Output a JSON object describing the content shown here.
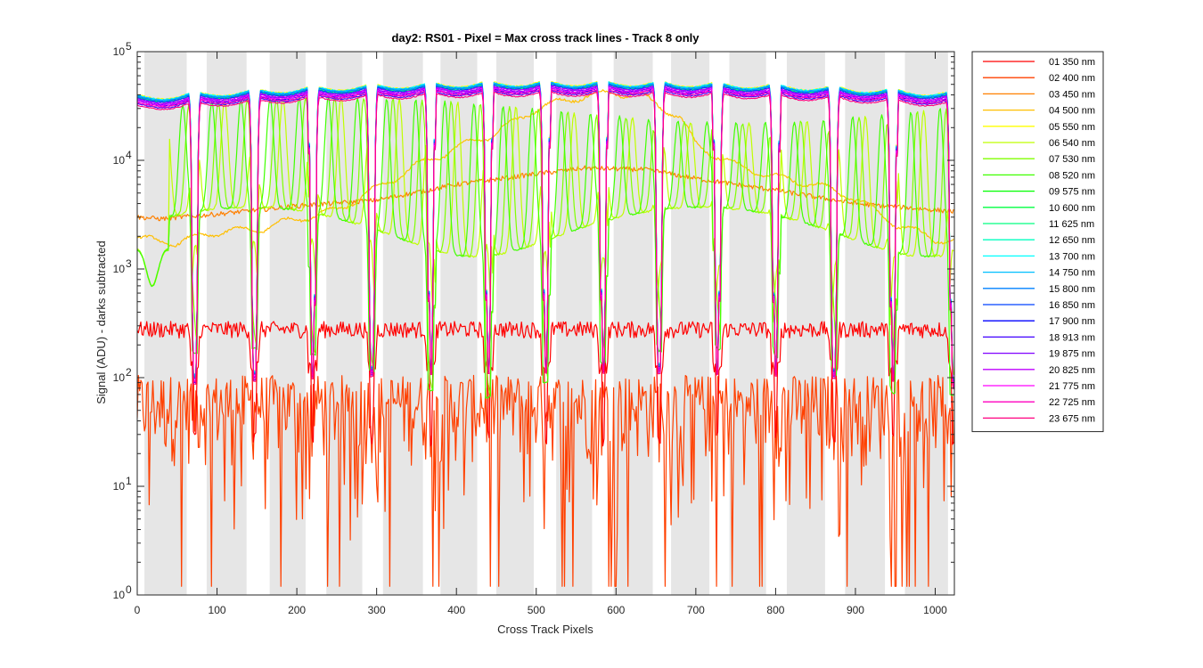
{
  "chart_data": {
    "type": "line",
    "title": "day2: RS01 - Pixel = Max cross track lines - Track 8 only",
    "xlabel": "Cross Track Pixels",
    "ylabel": "Signal (ADU) - darks subtracted",
    "xlim": [
      0,
      1024
    ],
    "ylim": [
      1,
      100000
    ],
    "yscale": "log",
    "grid": false,
    "legend_position": "outside-right",
    "xticks": [
      0,
      100,
      200,
      300,
      400,
      500,
      600,
      700,
      800,
      900,
      1000
    ],
    "xtick_labels": [
      "0",
      "100",
      "200",
      "300",
      "400",
      "500",
      "600",
      "700",
      "800",
      "900",
      "1000"
    ],
    "yticks": [
      1,
      10,
      100,
      1000,
      10000,
      100000
    ],
    "ytick_labels": [
      {
        "base": "10",
        "exp": "0"
      },
      {
        "base": "10",
        "exp": "1"
      },
      {
        "base": "10",
        "exp": "2"
      },
      {
        "base": "10",
        "exp": "3"
      },
      {
        "base": "10",
        "exp": "4"
      },
      {
        "base": "10",
        "exp": "5"
      }
    ],
    "shaded_bands": [
      [
        9,
        62
      ],
      [
        87,
        137
      ],
      [
        166,
        211
      ],
      [
        237,
        282
      ],
      [
        308,
        358
      ],
      [
        380,
        426
      ],
      [
        450,
        497
      ],
      [
        525,
        570
      ],
      [
        597,
        646
      ],
      [
        669,
        717
      ],
      [
        742,
        788
      ],
      [
        814,
        862
      ],
      [
        887,
        937
      ],
      [
        962,
        1016
      ]
    ],
    "dips": [
      72,
      147,
      220,
      294,
      368,
      440,
      512,
      584,
      654,
      727,
      800,
      873,
      947,
      1022
    ],
    "series": [
      {
        "name": "01 350 nm",
        "color": "#ff0000",
        "kind": "low",
        "level": 280
      },
      {
        "name": "02 400 nm",
        "color": "#ff4000",
        "kind": "noise",
        "level": 35
      },
      {
        "name": "03 450 nm",
        "color": "#ff8000",
        "kind": "orange",
        "x": [
          0,
          30,
          100,
          200,
          300,
          400,
          500,
          560,
          640,
          700,
          800,
          900,
          1000,
          1020
        ],
        "values": [
          3000,
          2900,
          3200,
          3800,
          4300,
          6000,
          7500,
          8500,
          8200,
          6800,
          5300,
          4000,
          3500,
          3400
        ]
      },
      {
        "name": "04 500 nm",
        "color": "#ffbf00",
        "kind": "gold",
        "x": [
          0,
          50,
          100,
          150,
          200,
          250,
          300,
          350,
          400,
          450,
          500,
          550,
          600,
          630,
          680,
          700,
          750,
          800,
          850,
          900,
          950,
          1000,
          1020
        ],
        "values": [
          1900,
          1750,
          2200,
          2300,
          2900,
          3500,
          5500,
          9000,
          13000,
          18000,
          30000,
          38000,
          42000,
          40000,
          25000,
          14000,
          9000,
          7000,
          6000,
          4500,
          2600,
          1900,
          1800
        ]
      },
      {
        "name": "05 550 nm",
        "color": "#ffff00",
        "kind": "full",
        "amp": 1.06
      },
      {
        "name": "06 540 nm",
        "color": "#bfff00",
        "kind": "green",
        "phase": 0.0
      },
      {
        "name": "07 530 nm",
        "color": "#80ff00",
        "kind": "green",
        "phase": 8.0
      },
      {
        "name": "08 520 nm",
        "color": "#40ff00",
        "kind": "green",
        "phase": 16.0
      },
      {
        "name": "09 575 nm",
        "color": "#00ff00",
        "kind": "full",
        "amp": 1.0
      },
      {
        "name": "10 600 nm",
        "color": "#00ff40",
        "kind": "full",
        "amp": 1.02
      },
      {
        "name": "11 625 nm",
        "color": "#00ff80",
        "kind": "full",
        "amp": 1.01
      },
      {
        "name": "12 650 nm",
        "color": "#00ffbf",
        "kind": "full",
        "amp": 1.03
      },
      {
        "name": "13 700 nm",
        "color": "#00ffff",
        "kind": "full",
        "amp": 1.05
      },
      {
        "name": "14 750 nm",
        "color": "#00bfff",
        "kind": "full",
        "amp": 1.04
      },
      {
        "name": "15 800 nm",
        "color": "#0080ff",
        "kind": "full",
        "amp": 1.02
      },
      {
        "name": "16 850 nm",
        "color": "#0040ff",
        "kind": "full",
        "amp": 0.99
      },
      {
        "name": "17 900 nm",
        "color": "#0000ff",
        "kind": "full",
        "amp": 0.92
      },
      {
        "name": "18 913 nm",
        "color": "#4000ff",
        "kind": "full",
        "amp": 0.88
      },
      {
        "name": "19 875 nm",
        "color": "#8000ff",
        "kind": "full",
        "amp": 0.95
      },
      {
        "name": "20 825 nm",
        "color": "#bf00ff",
        "kind": "full",
        "amp": 0.97
      },
      {
        "name": "21 775 nm",
        "color": "#ff00ff",
        "kind": "full",
        "amp": 0.93
      },
      {
        "name": "22 725 nm",
        "color": "#ff00bf",
        "kind": "full",
        "amp": 0.9
      },
      {
        "name": "23 675 nm",
        "color": "#ff0080",
        "kind": "full",
        "amp": 0.85
      }
    ]
  }
}
